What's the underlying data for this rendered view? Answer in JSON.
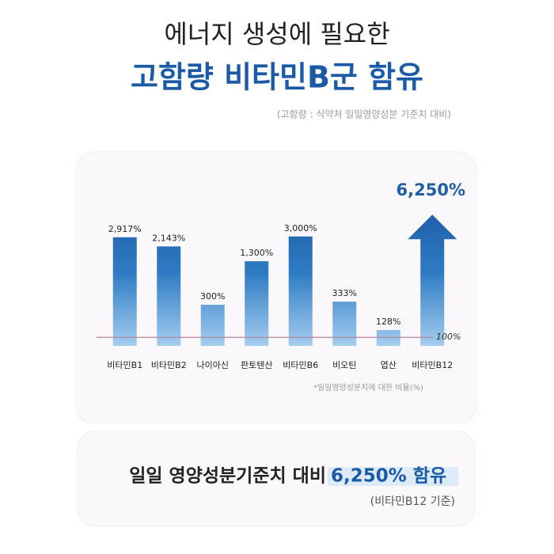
{
  "header": {
    "line1": "에너지 생성에 필요한",
    "line2": "고함량 비타민B군 함유",
    "note": "(고함량 : 식약처 일일영양성분 기준치 대비)"
  },
  "chart_data": {
    "type": "bar",
    "log_scale": true,
    "categories": [
      "비타민B1",
      "비타민B2",
      "나이아신",
      "판토텐산",
      "비타민B6",
      "비오틴",
      "엽산",
      "비타민B12"
    ],
    "values": [
      2917,
      2143,
      300,
      1300,
      3000,
      333,
      128,
      6250
    ],
    "value_labels": [
      "2,917%",
      "2,143%",
      "300%",
      "1,300%",
      "3,000%",
      "333%",
      "128%",
      "6,250%"
    ],
    "ylim": [
      75,
      7000
    ],
    "color": "#1f5fa8",
    "reference_line": {
      "value": 100,
      "label": "100%"
    },
    "footnote": "*일일영양성분치에 대한 비율(%)"
  },
  "summary": {
    "text": "일일 영양성분기준치 대비",
    "highlight": "6,250% 함유",
    "basis": "(비타민B12 기준)"
  }
}
